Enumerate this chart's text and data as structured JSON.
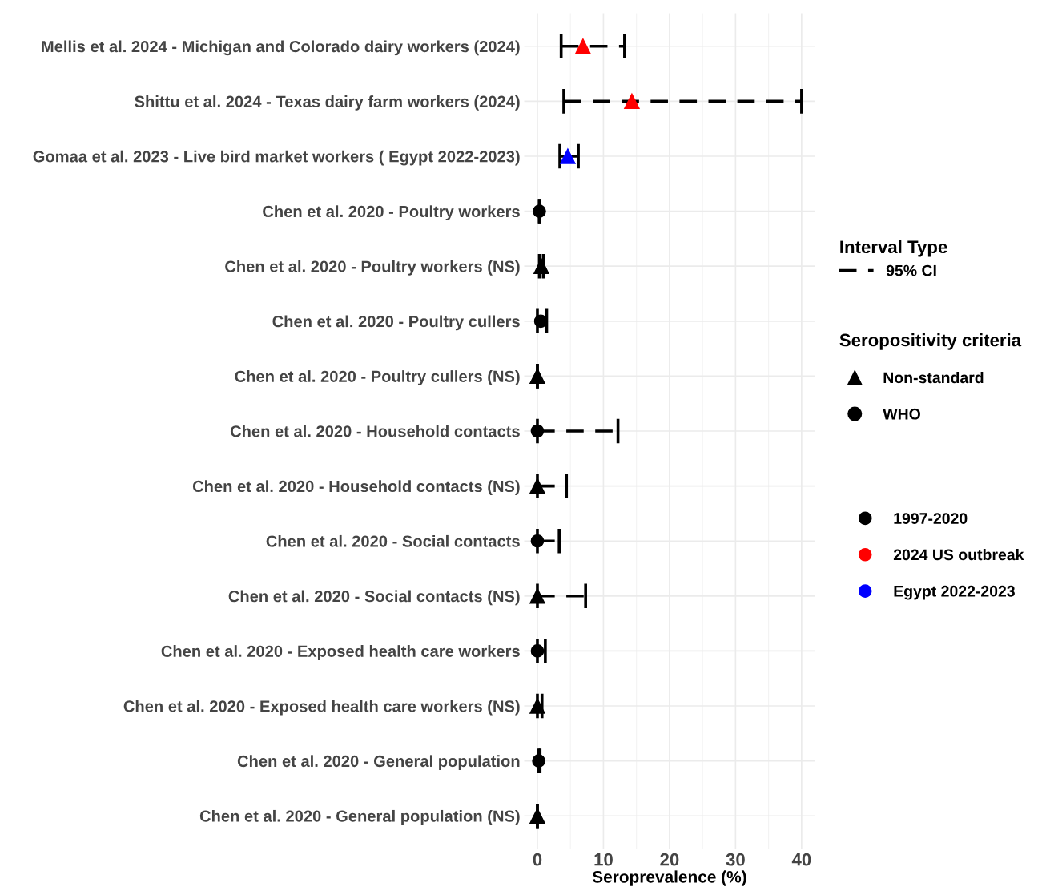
{
  "chart_data": {
    "type": "scatter",
    "orientation": "horizontal",
    "xlabel": "Seroprevalence (%)",
    "categories": [
      "Mellis et al. 2024 - Michigan and Colorado dairy workers (2024)",
      "Shittu et al. 2024 - Texas dairy farm workers (2024)",
      "Gomaa et al. 2023 - Live bird market workers ( Egypt 2022-2023)",
      "Chen et al. 2020 - Poultry workers",
      "Chen et al. 2020 - Poultry workers (NS)",
      "Chen et al. 2020 - Poultry cullers",
      "Chen et al. 2020 - Poultry cullers (NS)",
      "Chen et al. 2020 - Household contacts",
      "Chen et al. 2020 - Household contacts (NS)",
      "Chen et al. 2020 - Social contacts",
      "Chen et al. 2020 - Social contacts (NS)",
      "Chen et al. 2020 - Exposed health care workers",
      "Chen et al. 2020 - Exposed health care workers (NS)",
      "Chen et al. 2020 - General population",
      "Chen et al. 2020 - General population (NS)"
    ],
    "series": [
      {
        "name": "Non-standard",
        "marker": "triangle",
        "color": "#000000",
        "colors": [
          "#ff0000",
          "#ff0000",
          "#0000ff",
          null,
          "#000000",
          null,
          "#000000",
          null,
          "#000000",
          null,
          "#000000",
          null,
          "#000000",
          null,
          "#000000"
        ],
        "values": [
          6.9,
          14.3,
          4.6,
          null,
          0.6,
          null,
          0,
          null,
          0,
          null,
          0,
          null,
          0,
          null,
          0
        ],
        "errors": [
          [
            3.6,
            13.2
          ],
          [
            4.0,
            40
          ],
          [
            3.4,
            6.2
          ],
          null,
          [
            0.3,
            0.9
          ],
          null,
          [
            0,
            0
          ],
          null,
          [
            0,
            4.4
          ],
          null,
          [
            0,
            7.3
          ],
          null,
          [
            0,
            0.7
          ],
          null,
          [
            0,
            0
          ]
        ]
      },
      {
        "name": "WHO",
        "marker": "circle",
        "color": "#000000",
        "values": [
          null,
          null,
          null,
          0.3,
          null,
          0.5,
          null,
          0,
          null,
          0,
          null,
          0,
          null,
          0.2,
          null
        ],
        "errors": [
          null,
          null,
          null,
          [
            0.3,
            0.3
          ],
          null,
          [
            0,
            1.4
          ],
          null,
          [
            0,
            12.2
          ],
          null,
          [
            0,
            3.3
          ],
          null,
          [
            0,
            1.2
          ],
          null,
          [
            0.2,
            0.4
          ],
          null
        ]
      },
      {
        "name": "1997-2020",
        "color": "#000000",
        "values": [
          null,
          null,
          null,
          null,
          null,
          null,
          null,
          null,
          null,
          null,
          null,
          null,
          null,
          null,
          null
        ]
      },
      {
        "name": "2024 US outbreak",
        "color": "#ff0000",
        "values": [
          null,
          null,
          null,
          null,
          null,
          null,
          null,
          null,
          null,
          null,
          null,
          null,
          null,
          null,
          null
        ]
      },
      {
        "name": "Egypt 2022-2023",
        "color": "#0000ff",
        "values": [
          null,
          null,
          null,
          null,
          null,
          null,
          null,
          null,
          null,
          null,
          null,
          null,
          null,
          null,
          null
        ]
      }
    ],
    "line_style": "dashed",
    "annotations": [
      "Interval Type",
      "95% CI"
    ],
    "legend_title": "Seropositivity criteria",
    "xlim": [
      -2,
      42
    ],
    "xticks": [
      0,
      10,
      20,
      30,
      40
    ],
    "grid": true,
    "legend": "right"
  }
}
